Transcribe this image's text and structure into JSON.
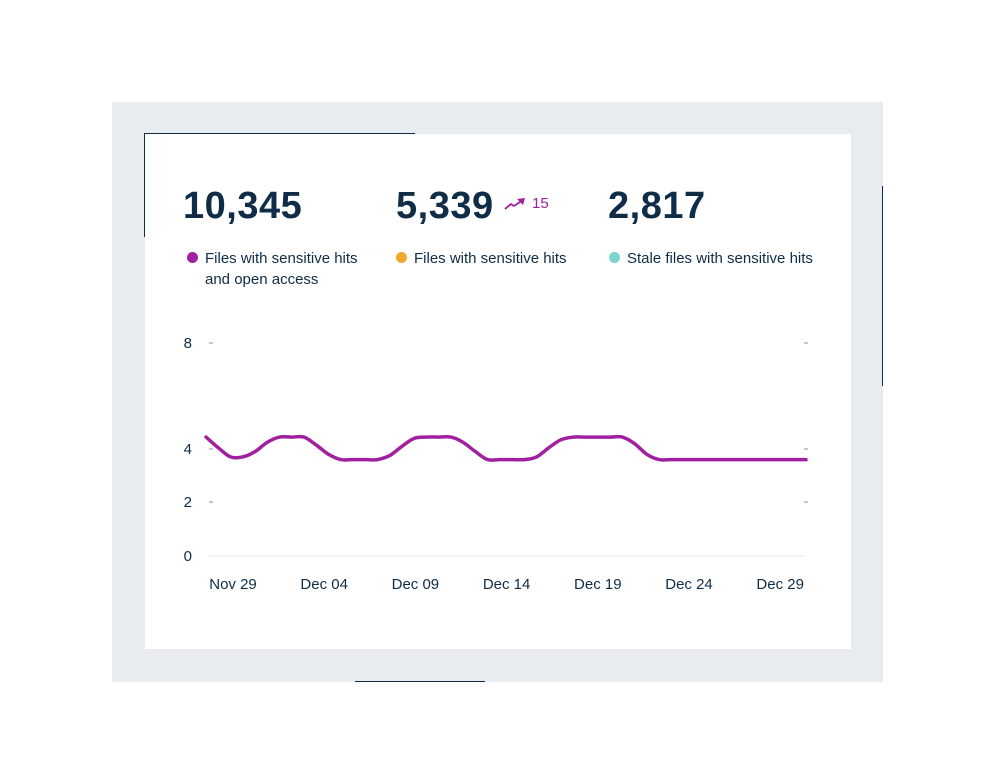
{
  "stats": [
    {
      "value": "10,345"
    },
    {
      "value": "5,339",
      "trend": {
        "value": "15",
        "icon": "trend-up-icon",
        "color": "#a020a0"
      }
    },
    {
      "value": "2,817"
    }
  ],
  "legend": [
    {
      "label": "Files with sensitive hits\nand open access",
      "color": "#a020a0"
    },
    {
      "label": "Files with sensitive hits",
      "color": "#f0a830"
    },
    {
      "label": "Stale files with sensitive hits",
      "color": "#7dd3cf"
    }
  ],
  "chart_data": {
    "type": "line",
    "title": "",
    "xlabel": "",
    "ylabel": "",
    "ylim": [
      0,
      8
    ],
    "y_ticks": [
      {
        "value": 0,
        "label": "0"
      },
      {
        "value": 2,
        "label": "2"
      },
      {
        "value": 4,
        "label": "4"
      },
      {
        "value": 8,
        "label": "8"
      }
    ],
    "x_ticks": [
      "Nov 29",
      "Dec 04",
      "Dec 09",
      "Dec 14",
      "Dec 19",
      "Dec 24",
      "Dec 29"
    ],
    "series": [
      {
        "color": "#a020a0",
        "values": [
          4.45,
          4.05,
          3.7,
          3.7,
          3.9,
          4.25,
          4.45,
          4.45,
          4.45,
          4.15,
          3.8,
          3.6,
          3.6,
          3.6,
          3.6,
          3.75,
          4.1,
          4.4,
          4.45,
          4.45,
          4.45,
          4.25,
          3.9,
          3.6,
          3.6,
          3.6,
          3.6,
          3.7,
          4.05,
          4.35,
          4.45,
          4.45,
          4.45,
          4.45,
          4.45,
          4.2,
          3.8,
          3.6,
          3.6,
          3.6,
          3.6,
          3.6,
          3.6,
          3.6,
          3.6,
          3.6,
          3.6,
          3.6,
          3.6,
          3.6
        ]
      }
    ]
  }
}
